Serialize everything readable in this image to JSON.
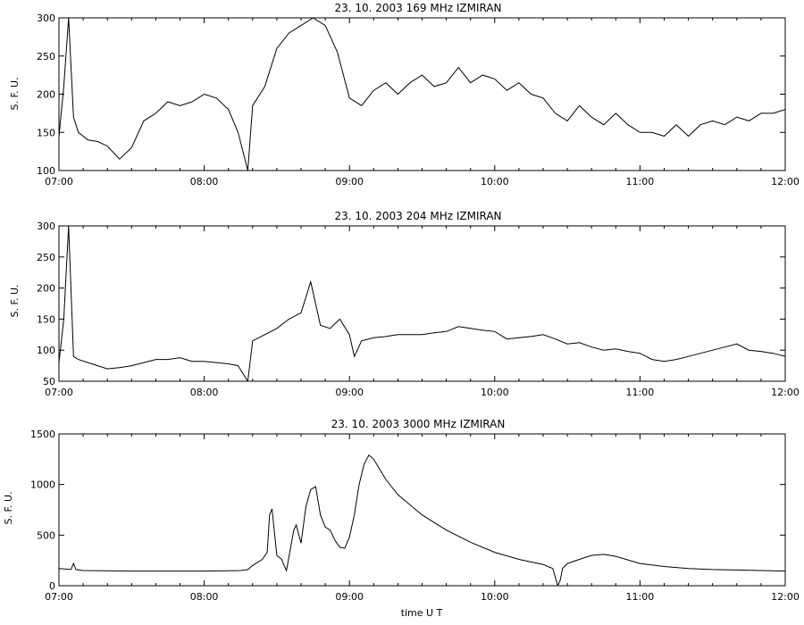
{
  "chart_data": [
    {
      "type": "line",
      "title": "23.  10.  2003    169 MHz    IZMIRAN",
      "ylabel": "S. F. U.",
      "xlabel": "",
      "xlim": [
        "07:00",
        "12:00"
      ],
      "ylim": [
        100,
        300
      ],
      "x_ticks": [
        "07:00",
        "08:00",
        "09:00",
        "10:00",
        "11:00",
        "12:00"
      ],
      "y_ticks": [
        "100",
        "150",
        "200",
        "250",
        "300"
      ],
      "grid": false,
      "series": [
        {
          "x": [
            "07:00",
            "07:02",
            "07:04",
            "07:06",
            "07:08",
            "07:12",
            "07:16",
            "07:20",
            "07:25",
            "07:30",
            "07:35",
            "07:40",
            "07:45",
            "07:50",
            "07:55",
            "08:00",
            "08:05",
            "08:10",
            "08:14",
            "08:18",
            "08:20",
            "08:25",
            "08:30",
            "08:35",
            "08:40",
            "08:45",
            "08:50",
            "08:55",
            "09:00",
            "09:05",
            "09:10",
            "09:15",
            "09:20",
            "09:25",
            "09:30",
            "09:35",
            "09:40",
            "09:45",
            "09:50",
            "09:55",
            "10:00",
            "10:05",
            "10:10",
            "10:15",
            "10:20",
            "10:25",
            "10:30",
            "10:35",
            "10:40",
            "10:45",
            "10:50",
            "10:55",
            "11:00",
            "11:05",
            "11:10",
            "11:15",
            "11:20",
            "11:25",
            "11:30",
            "11:35",
            "11:40",
            "11:45",
            "11:50",
            "11:55",
            "12:00"
          ],
          "values": [
            145,
            210,
            300,
            170,
            150,
            140,
            138,
            132,
            115,
            130,
            165,
            175,
            190,
            185,
            190,
            200,
            195,
            180,
            150,
            100,
            185,
            210,
            260,
            280,
            290,
            300,
            290,
            255,
            195,
            185,
            205,
            215,
            200,
            215,
            225,
            210,
            215,
            235,
            215,
            225,
            220,
            205,
            215,
            200,
            195,
            175,
            165,
            185,
            170,
            160,
            175,
            160,
            150,
            150,
            145,
            160,
            145,
            160,
            165,
            160,
            170,
            165,
            175,
            175,
            180
          ]
        }
      ]
    },
    {
      "type": "line",
      "title": "23.  10.  2003    204 MHz    IZMIRAN",
      "ylabel": "S. F. U.",
      "xlabel": "",
      "xlim": [
        "07:00",
        "12:00"
      ],
      "ylim": [
        50,
        300
      ],
      "x_ticks": [
        "07:00",
        "08:00",
        "09:00",
        "10:00",
        "11:00",
        "12:00"
      ],
      "y_ticks": [
        "50",
        "100",
        "150",
        "200",
        "250",
        "300"
      ],
      "grid": false,
      "series": [
        {
          "x": [
            "07:00",
            "07:02",
            "07:04",
            "07:06",
            "07:08",
            "07:12",
            "07:16",
            "07:20",
            "07:25",
            "07:30",
            "07:35",
            "07:40",
            "07:45",
            "07:50",
            "07:55",
            "08:00",
            "08:05",
            "08:10",
            "08:14",
            "08:18",
            "08:20",
            "08:25",
            "08:30",
            "08:35",
            "08:40",
            "08:44",
            "08:48",
            "08:52",
            "08:56",
            "09:00",
            "09:02",
            "09:05",
            "09:10",
            "09:15",
            "09:20",
            "09:25",
            "09:30",
            "09:35",
            "09:40",
            "09:45",
            "09:50",
            "09:55",
            "10:00",
            "10:05",
            "10:10",
            "10:15",
            "10:20",
            "10:25",
            "10:30",
            "10:35",
            "10:40",
            "10:45",
            "10:50",
            "10:55",
            "11:00",
            "11:05",
            "11:10",
            "11:15",
            "11:20",
            "11:25",
            "11:30",
            "11:35",
            "11:40",
            "11:45",
            "11:50",
            "11:55",
            "12:00"
          ],
          "values": [
            80,
            150,
            300,
            90,
            85,
            80,
            75,
            70,
            72,
            75,
            80,
            85,
            85,
            88,
            82,
            82,
            80,
            78,
            75,
            50,
            115,
            125,
            135,
            150,
            160,
            210,
            140,
            135,
            150,
            125,
            90,
            115,
            120,
            122,
            125,
            125,
            125,
            128,
            130,
            138,
            135,
            132,
            130,
            118,
            120,
            122,
            125,
            118,
            110,
            112,
            105,
            100,
            102,
            98,
            95,
            85,
            82,
            85,
            90,
            95,
            100,
            105,
            110,
            100,
            98,
            95,
            90
          ]
        }
      ]
    },
    {
      "type": "line",
      "title": "23.  10.  2003    3000 MHz    IZMIRAN",
      "ylabel": "S. F. U.",
      "xlabel": "time  U T",
      "xlim": [
        "07:00",
        "12:00"
      ],
      "ylim": [
        0,
        1500
      ],
      "x_ticks": [
        "07:00",
        "08:00",
        "09:00",
        "10:00",
        "11:00",
        "12:00"
      ],
      "y_ticks": [
        "0",
        "500",
        "1000",
        "1500"
      ],
      "grid": false,
      "series": [
        {
          "x": [
            "07:00",
            "07:05",
            "07:06",
            "07:07",
            "07:10",
            "07:30",
            "08:00",
            "08:15",
            "08:18",
            "08:20",
            "08:24",
            "08:26",
            "08:27",
            "08:28",
            "08:30",
            "08:32",
            "08:33",
            "08:34",
            "08:36",
            "08:37",
            "08:38",
            "08:40",
            "08:42",
            "08:44",
            "08:46",
            "08:48",
            "08:50",
            "08:52",
            "08:54",
            "08:56",
            "08:58",
            "09:00",
            "09:02",
            "09:04",
            "09:06",
            "09:08",
            "09:10",
            "09:15",
            "09:20",
            "09:30",
            "09:40",
            "09:50",
            "10:00",
            "10:10",
            "10:20",
            "10:22",
            "10:23",
            "10:24",
            "10:26",
            "10:27",
            "10:28",
            "10:30",
            "10:35",
            "10:40",
            "10:45",
            "10:50",
            "11:00",
            "11:10",
            "11:20",
            "11:30",
            "11:40",
            "11:50",
            "12:00"
          ],
          "values": [
            170,
            160,
            220,
            160,
            150,
            145,
            145,
            150,
            160,
            200,
            260,
            330,
            700,
            760,
            300,
            260,
            200,
            150,
            420,
            550,
            600,
            420,
            780,
            950,
            980,
            700,
            580,
            550,
            450,
            380,
            370,
            480,
            700,
            1000,
            1200,
            1290,
            1250,
            1050,
            900,
            700,
            550,
            430,
            330,
            260,
            210,
            190,
            180,
            170,
            0,
            50,
            170,
            220,
            260,
            300,
            310,
            290,
            220,
            190,
            170,
            160,
            155,
            150,
            145
          ]
        }
      ]
    }
  ]
}
